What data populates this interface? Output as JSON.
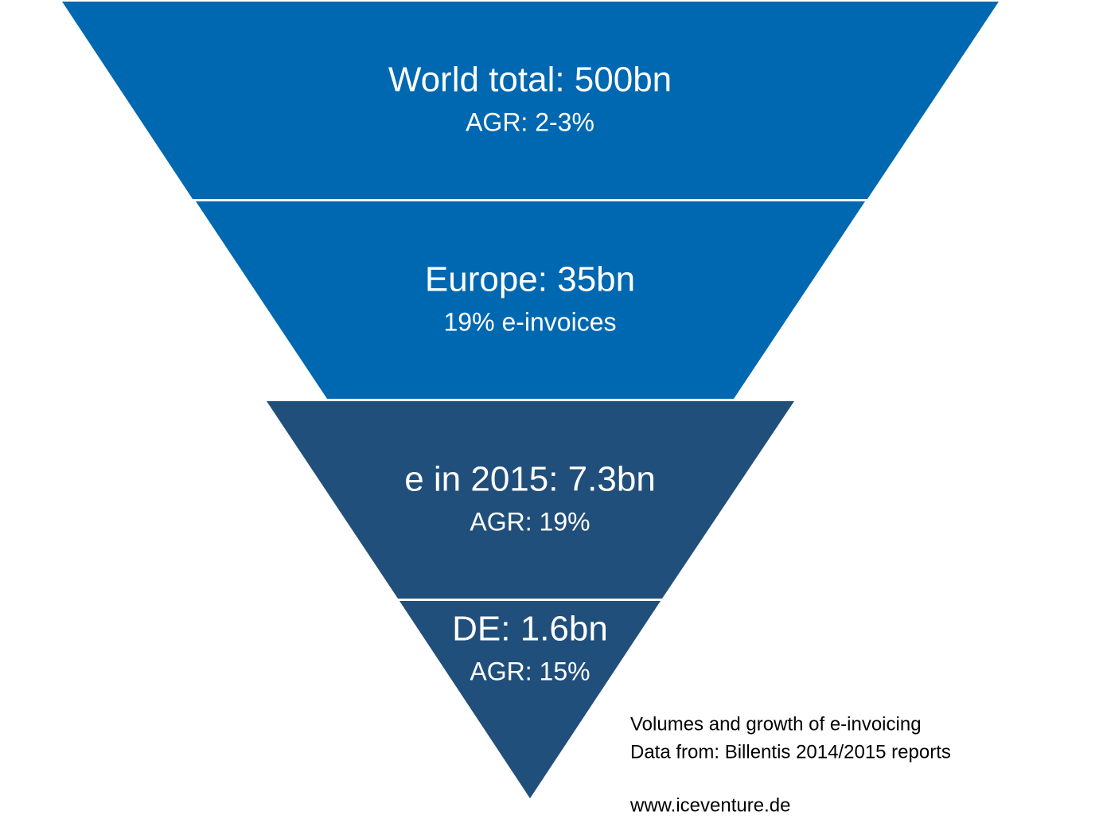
{
  "layers": [
    {
      "title": "World total: 500bn",
      "subtitle": "AGR: 2-3%"
    },
    {
      "title": "Europe: 35bn",
      "subtitle": "19% e-invoices"
    },
    {
      "title": "e in 2015: 7.3bn",
      "subtitle": "AGR: 19%"
    },
    {
      "title": "DE: 1.6bn",
      "subtitle": "AGR: 15%"
    }
  ],
  "note": {
    "lines": [
      "Volumes and growth of e-invoicing",
      "Data from: Billentis 2014/2015 reports"
    ],
    "url": "www.iceventure.de"
  }
}
